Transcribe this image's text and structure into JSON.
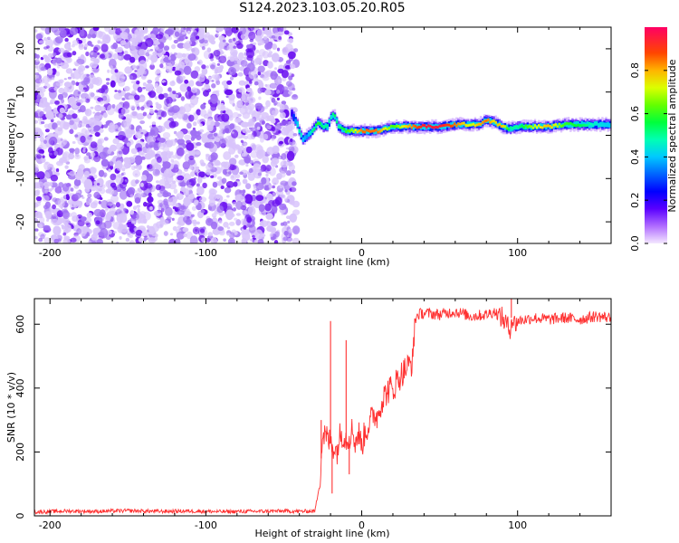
{
  "figure": {
    "title": "S124.2023.103.05.20.R05"
  },
  "chart_data": [
    {
      "type": "heatmap",
      "title": "S124.2023.103.05.20.R05",
      "xlabel": "Height of straight line (km)",
      "ylabel": "Frequency (Hz)",
      "xlim": [
        -210,
        160
      ],
      "ylim": [
        -25,
        25
      ],
      "x_ticks": [
        -200,
        -100,
        0,
        100
      ],
      "x_tick_labels": [
        "-200",
        "-100",
        "0",
        "100"
      ],
      "y_ticks": [
        -20,
        -10,
        0,
        10,
        20
      ],
      "y_tick_labels": [
        "-20",
        "-10",
        "0",
        "10",
        "20"
      ],
      "noise_region_x": [
        -210,
        -42
      ],
      "signal_ridge": {
        "x": [
          -45,
          -42,
          -40,
          -38,
          -35,
          -32,
          -30,
          -28,
          -25,
          -22,
          -20,
          -18,
          -15,
          -10,
          -5,
          0,
          10,
          20,
          30,
          40,
          50,
          60,
          70,
          75,
          80,
          85,
          90,
          95,
          100,
          110,
          120,
          130,
          140,
          150,
          160
        ],
        "freq": [
          5,
          3,
          1,
          -1,
          0,
          1,
          2,
          3,
          2,
          2,
          4,
          5,
          2,
          1,
          1,
          1,
          1,
          2,
          2,
          2,
          2,
          2.5,
          2.5,
          2.5,
          3.5,
          3,
          2,
          1.5,
          2,
          2,
          2,
          2.5,
          2.5,
          2.5,
          2.5
        ],
        "amplitude": [
          0.2,
          0.4,
          0.5,
          0.4,
          0.35,
          0.5,
          0.55,
          0.6,
          0.5,
          0.5,
          0.45,
          0.55,
          0.5,
          0.6,
          0.7,
          0.85,
          0.85,
          0.6,
          0.8,
          0.95,
          0.95,
          0.85,
          0.7,
          0.8,
          0.85,
          0.75,
          0.8,
          0.5,
          0.5,
          0.7,
          0.8,
          0.6,
          0.55,
          0.45,
          0.4
        ]
      },
      "colorbar": {
        "label": "Normalized spectral amplitude",
        "range": [
          0,
          1
        ],
        "ticks": [
          0.0,
          0.2,
          0.4,
          0.6,
          0.8
        ],
        "tick_labels": [
          "0.0",
          "0.2",
          "0.4",
          "0.6",
          "0.8"
        ]
      }
    },
    {
      "type": "line",
      "xlabel": "Height of straight line (km)",
      "ylabel": "SNR (10 * v/v)",
      "xlim": [
        -210,
        160
      ],
      "ylim": [
        0,
        680
      ],
      "x_ticks": [
        -200,
        -100,
        0,
        100
      ],
      "x_tick_labels": [
        "-200",
        "-100",
        "0",
        "100"
      ],
      "y_ticks": [
        0,
        200,
        400,
        600
      ],
      "y_tick_labels": [
        "0",
        "200",
        "400",
        "600"
      ],
      "series": [
        {
          "name": "SNR",
          "color": "#ff3030",
          "x": [
            -210,
            -190,
            -170,
            -150,
            -130,
            -110,
            -90,
            -70,
            -50,
            -40,
            -30,
            -27,
            -25,
            -22,
            -20,
            -18,
            -16,
            -14,
            -12,
            -10,
            -8,
            -6,
            -4,
            -2,
            0,
            2,
            4,
            6,
            8,
            10,
            12,
            15,
            18,
            20,
            22,
            25,
            28,
            30,
            32,
            33,
            34,
            36,
            40,
            50,
            60,
            70,
            80,
            85,
            90,
            93,
            95,
            96,
            98,
            100,
            110,
            120,
            130,
            140,
            150,
            160
          ],
          "y": [
            12,
            15,
            14,
            16,
            14,
            15,
            13,
            14,
            15,
            14,
            15,
            100,
            260,
            240,
            230,
            220,
            200,
            250,
            260,
            240,
            250,
            270,
            230,
            260,
            220,
            260,
            280,
            300,
            320,
            310,
            350,
            380,
            400,
            390,
            420,
            440,
            460,
            470,
            480,
            490,
            610,
            630,
            635,
            630,
            640,
            625,
            630,
            640,
            620,
            600,
            580,
            620,
            600,
            610,
            620,
            615,
            620,
            615,
            625,
            620
          ]
        }
      ],
      "spikes": [
        {
          "x": -26,
          "y": 300
        },
        {
          "x": -20,
          "y": 610
        },
        {
          "x": -19,
          "y": 70
        },
        {
          "x": -10,
          "y": 550
        },
        {
          "x": -8,
          "y": 130
        },
        {
          "x": 96,
          "y": 680
        }
      ]
    }
  ]
}
